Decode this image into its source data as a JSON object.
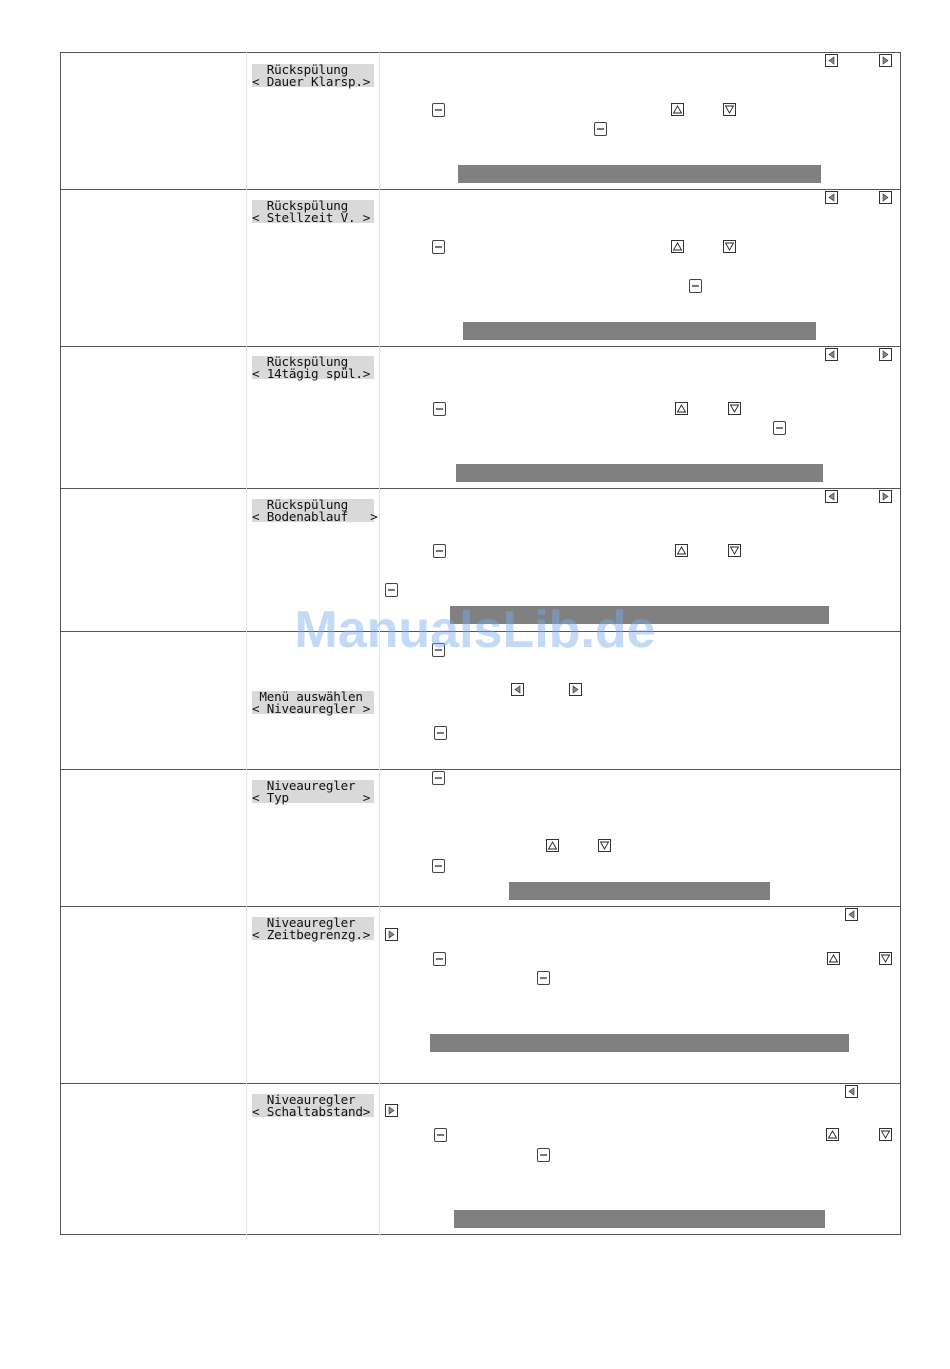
{
  "rows": [
    {
      "lcd": [
        "  Rückspülung",
        "< Dauer Klarsp.>"
      ]
    },
    {
      "lcd": [
        "  Rückspülung",
        "< Stellzeit V. >"
      ]
    },
    {
      "lcd": [
        "  Rückspülung",
        "< 14tägig spül.>"
      ]
    },
    {
      "lcd": [
        "  Rückspülung",
        "< Bodenablauf   >"
      ]
    },
    {
      "lcd": [
        " Menü auswählen",
        "< Niveauregler >"
      ]
    },
    {
      "lcd": [
        "  Niveauregler",
        "< Typ          >"
      ]
    },
    {
      "lcd": [
        "  Niveauregler",
        "< Zeitbegrenzg.>"
      ]
    },
    {
      "lcd": [
        "  Niveauregler",
        "< Schaltabstand>"
      ]
    }
  ],
  "icons": {
    "left": "arrow-left-key-icon",
    "right": "arrow-right-key-icon",
    "up": "arrow-up-key-icon",
    "down": "arrow-down-key-icon",
    "menu": "menu-key-icon"
  },
  "colors": {
    "lcd_background": "#d9d9d9",
    "bar": "#808080",
    "watermark": "#78aaf0"
  },
  "watermark": "ManualsLib.de"
}
